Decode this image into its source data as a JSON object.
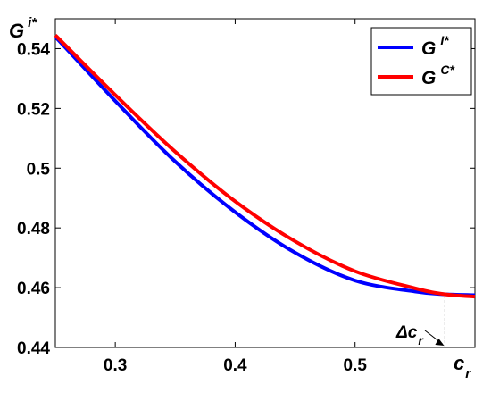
{
  "chart_data": {
    "type": "line",
    "xlim": [
      0.25,
      0.6
    ],
    "ylim": [
      0.44,
      0.55
    ],
    "x_ticks": [
      0.3,
      0.4,
      0.5
    ],
    "x_tick_labels": [
      "0.3",
      "0.4",
      "0.5"
    ],
    "y_ticks": [
      0.44,
      0.46,
      0.48,
      0.5,
      0.52,
      0.54
    ],
    "y_tick_labels": [
      "0.44",
      "0.46",
      "0.48",
      "0.5",
      "0.52",
      "0.54"
    ],
    "xlabel": {
      "main": "c",
      "sub": "r"
    },
    "ylabel": {
      "main": "G",
      "sup": "i*"
    },
    "legend_placement": "top-right",
    "grid": false,
    "series": [
      {
        "name": {
          "main": "G",
          "sup": "I*"
        },
        "color": "#0000ff",
        "x": [
          0.25,
          0.3,
          0.35,
          0.4,
          0.45,
          0.5,
          0.55,
          0.575,
          0.6
        ],
        "y": [
          0.544,
          0.5225,
          0.5022,
          0.4853,
          0.4717,
          0.4624,
          0.4587,
          0.4578,
          0.4575
        ]
      },
      {
        "name": {
          "main": "G",
          "sup": "C*"
        },
        "color": "#ff0000",
        "x": [
          0.25,
          0.3,
          0.35,
          0.4,
          0.45,
          0.5,
          0.55,
          0.575,
          0.6
        ],
        "y": [
          0.5445,
          0.5245,
          0.5055,
          0.4889,
          0.4755,
          0.4655,
          0.4598,
          0.4578,
          0.457
        ]
      }
    ],
    "annotation": {
      "label": {
        "main": "Δc",
        "sub": "r"
      },
      "x": 0.575,
      "y_range": [
        0.44,
        0.4578
      ]
    }
  }
}
